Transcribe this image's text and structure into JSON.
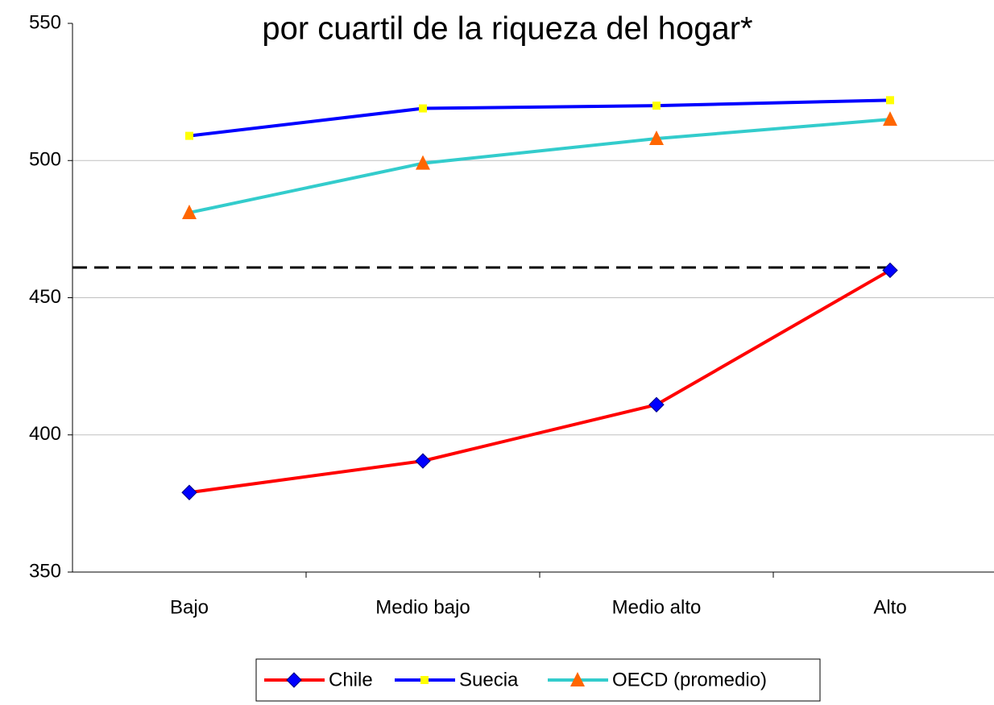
{
  "chart_data": {
    "type": "line",
    "title": "por cuartil de la riqueza del hogar*",
    "categories": [
      "Bajo",
      "Medio bajo",
      "Medio alto",
      "Alto"
    ],
    "series": [
      {
        "name": "Chile",
        "color": "#ff0000",
        "marker": "diamond",
        "marker_color": "#0000ff",
        "values": [
          379,
          390.5,
          411,
          460
        ]
      },
      {
        "name": "Suecia",
        "color": "#0000ff",
        "marker": "square",
        "marker_color": "#ffff00",
        "values": [
          509,
          519,
          520,
          522
        ]
      },
      {
        "name": "OECD (promedio)",
        "color": "#33cccc",
        "marker": "triangle",
        "marker_color": "#ff6600",
        "values": [
          481,
          499,
          508,
          515
        ]
      }
    ],
    "reference_line": {
      "value": 461,
      "color": "#000000",
      "dashed": true
    },
    "ylim": [
      350,
      550
    ],
    "yticks": [
      350,
      400,
      450,
      500,
      550
    ],
    "grid": true,
    "legend": "bottom"
  }
}
